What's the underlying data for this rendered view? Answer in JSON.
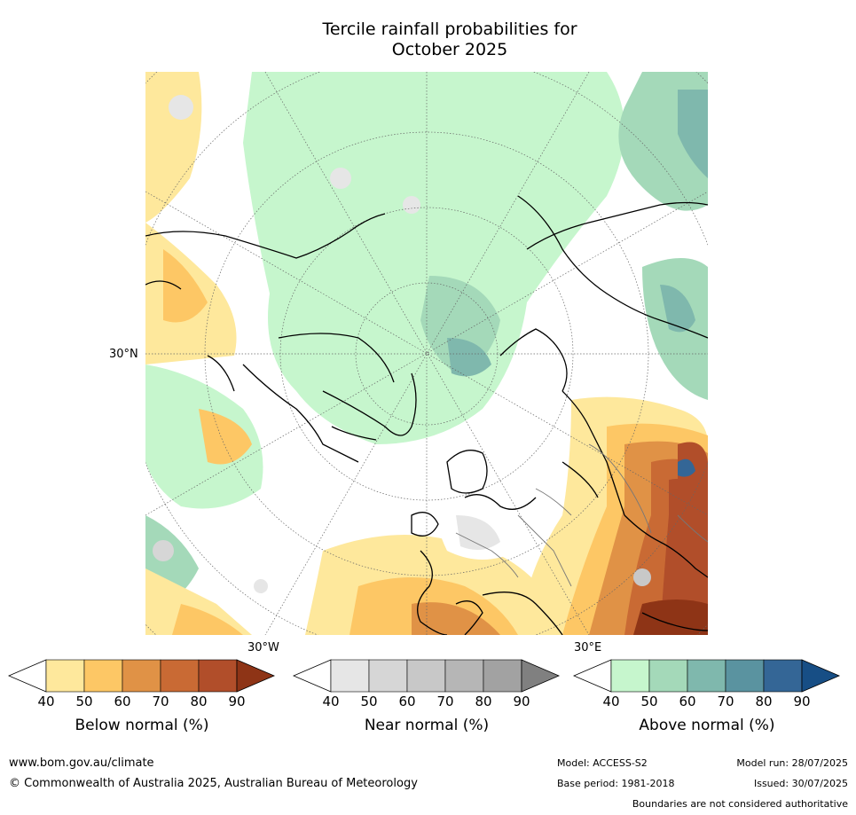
{
  "title_line1": "Tercile rainfall probabilities for",
  "title_line2": "October 2025",
  "map_labels": {
    "lat": "30°N",
    "lon_w": "30°W",
    "lon_e": "30°E"
  },
  "legends": [
    {
      "caption": "Below normal (%)",
      "ticks": [
        "40",
        "50",
        "60",
        "70",
        "80",
        "90"
      ],
      "colors": [
        "#ffffff",
        "#fee89c",
        "#fdc765",
        "#e09246",
        "#c96a34",
        "#b14e2a",
        "#8e3416"
      ]
    },
    {
      "caption": "Near normal (%)",
      "ticks": [
        "40",
        "50",
        "60",
        "70",
        "80",
        "90"
      ],
      "colors": [
        "#ffffff",
        "#e6e6e6",
        "#d6d6d6",
        "#c8c8c8",
        "#b6b6b6",
        "#a2a2a2",
        "#808080"
      ]
    },
    {
      "caption": "Above normal (%)",
      "ticks": [
        "40",
        "50",
        "60",
        "70",
        "80",
        "90"
      ],
      "colors": [
        "#ffffff",
        "#c6f6cd",
        "#a4d9b9",
        "#7fb8ad",
        "#5a93a0",
        "#346696",
        "#174e85"
      ]
    }
  ],
  "footer": {
    "url": "www.bom.gov.au/climate",
    "copyright": "© Commonwealth of Australia 2025, Australian Bureau of Meteorology",
    "model": "Model: ACCESS-S2",
    "base_period": "Base period: 1981-2018",
    "model_run": "Model run: 28/07/2025",
    "issued": "Issued: 30/07/2025",
    "disclaimer": "Boundaries are not considered authoritative"
  }
}
